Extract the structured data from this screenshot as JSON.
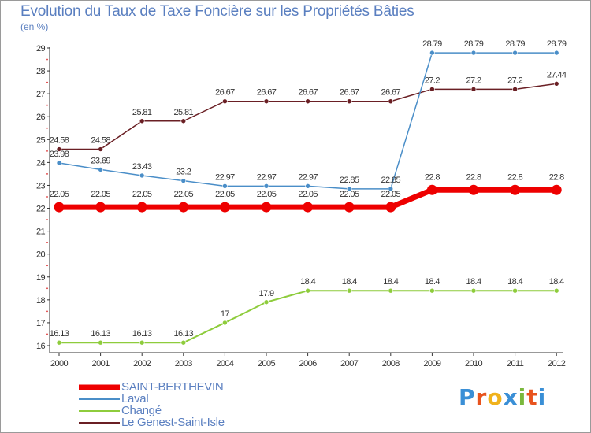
{
  "title": "Evolution du Taux de Taxe Foncière sur les Propriétés Bâties",
  "unit": "(en %)",
  "logo": "Proxiti",
  "colors": {
    "saint": "#ee0000",
    "laval": "#4a8ec8",
    "change": "#8ecc3c",
    "genest": "#6a1f24",
    "title": "#5a7fc0"
  },
  "chart_data": {
    "type": "line",
    "title": "Evolution du Taux de Taxe Foncière sur les Propriétés Bâties",
    "ylabel": "(en %)",
    "xlabel": "",
    "ylim": [
      16,
      29
    ],
    "categories": [
      "2000",
      "2001",
      "2002",
      "2003",
      "2004",
      "2005",
      "2006",
      "2007",
      "2008",
      "2009",
      "2010",
      "2011",
      "2012"
    ],
    "yticks": [
      16,
      17,
      18,
      19,
      20,
      21,
      22,
      23,
      24,
      25,
      26,
      27,
      28,
      29
    ],
    "grid": false,
    "series": [
      {
        "key": "saint",
        "name": "SAINT-BERTHEVIN",
        "values": [
          22.05,
          22.05,
          22.05,
          22.05,
          22.05,
          22.05,
          22.05,
          22.05,
          22.05,
          22.8,
          22.8,
          22.8,
          22.8
        ],
        "labels": [
          "22.05",
          "22.05",
          "22.05",
          "22.05",
          "22.05",
          "22.05",
          "22.05",
          "22.05",
          "22.05",
          "22.8",
          "22.8",
          "22.8",
          "22.8"
        ]
      },
      {
        "key": "laval",
        "name": "Laval",
        "values": [
          23.98,
          23.69,
          23.43,
          23.2,
          22.97,
          22.97,
          22.97,
          22.85,
          22.85,
          28.79,
          28.79,
          28.79,
          28.79
        ],
        "labels": [
          "23.98",
          "23.69",
          "23.43",
          "23.2",
          "22.97",
          "22.97",
          "22.97",
          "22.85",
          "22.85",
          "28.79",
          "28.79",
          "28.79",
          "28.79"
        ]
      },
      {
        "key": "change",
        "name": "Changé",
        "values": [
          16.13,
          16.13,
          16.13,
          16.13,
          17,
          17.9,
          18.4,
          18.4,
          18.4,
          18.4,
          18.4,
          18.4,
          18.4
        ],
        "labels": [
          "16.13",
          "16.13",
          "16.13",
          "16.13",
          "17",
          "17.9",
          "18.4",
          "18.4",
          "18.4",
          "18.4",
          "18.4",
          "18.4",
          "18.4"
        ]
      },
      {
        "key": "genest",
        "name": "Le Genest-Saint-Isle",
        "values": [
          24.58,
          24.58,
          25.81,
          25.81,
          26.67,
          26.67,
          26.67,
          26.67,
          26.67,
          27.2,
          27.2,
          27.2,
          27.44
        ],
        "labels": [
          "24.58",
          "24.58",
          "25.81",
          "25.81",
          "26.67",
          "26.67",
          "26.67",
          "26.67",
          "26.67",
          "27.2",
          "27.2",
          "27.2",
          "27.44"
        ]
      }
    ]
  }
}
